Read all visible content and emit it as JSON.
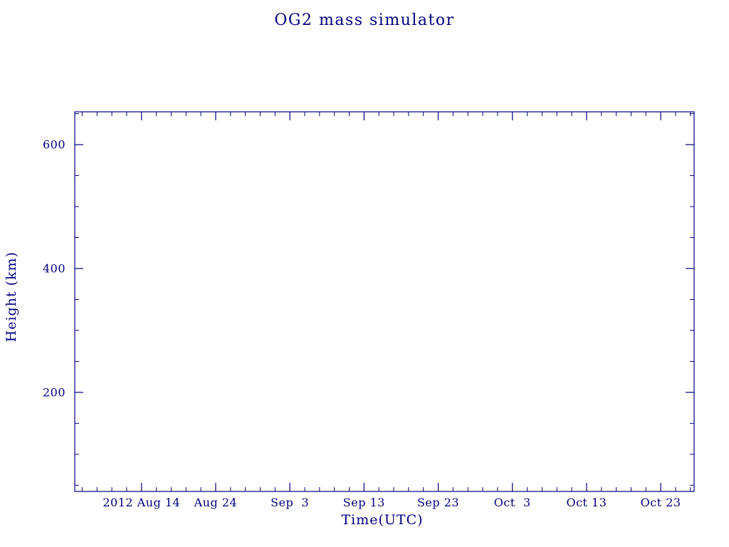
{
  "chart_data": {
    "type": "line",
    "title": "OG2 mass simulator",
    "xlabel": "Time(UTC)",
    "ylabel": "Height (km)",
    "x_tick_labels": [
      "2012 Aug 14",
      "Aug 24",
      "Sep  3",
      "Sep 13",
      "Sep 23",
      "Oct  3",
      "Oct 13",
      "Oct 23"
    ],
    "x_tick_days": [
      9,
      19,
      29,
      39,
      49,
      59,
      69,
      79
    ],
    "x_range_days": [
      0,
      83.5
    ],
    "x_minor_step_days": 2,
    "y_ticks": [
      200,
      400,
      600
    ],
    "y_tick_labels": [
      "200",
      "400",
      "600"
    ],
    "y_minor_step": 50,
    "ylim": [
      40,
      653
    ],
    "grid": false,
    "legend": "none",
    "series": [],
    "accent_color": "#000080",
    "background_color": "#ffffff"
  }
}
